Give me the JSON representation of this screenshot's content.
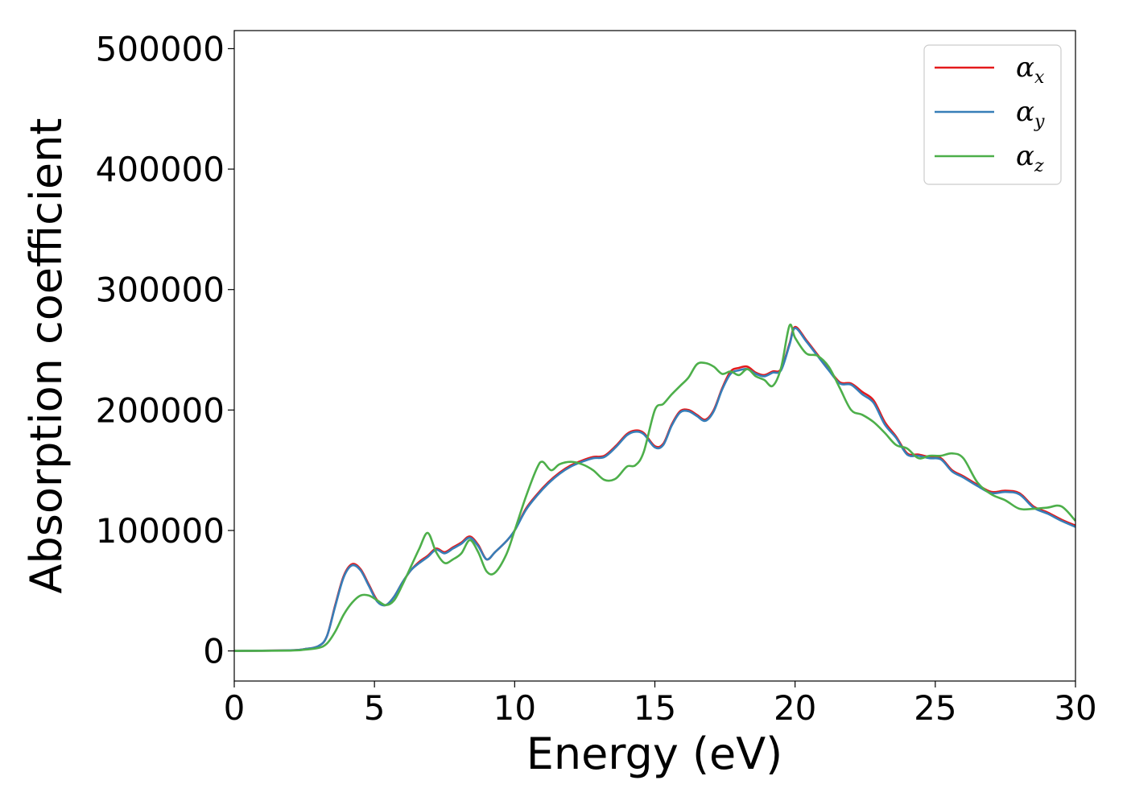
{
  "chart_data": {
    "type": "line",
    "xlabel": "Energy (eV)",
    "ylabel": "Absorption coefficient",
    "xlim": [
      0,
      30
    ],
    "ylim": [
      -25000,
      515000
    ],
    "xticks": [
      0,
      5,
      10,
      15,
      20,
      25,
      30
    ],
    "xtick_labels": [
      "0",
      "5",
      "10",
      "15",
      "20",
      "25",
      "30"
    ],
    "yticks": [
      0,
      100000,
      200000,
      300000,
      400000,
      500000
    ],
    "ytick_labels": [
      "0",
      "100000",
      "200000",
      "300000",
      "400000",
      "500000"
    ],
    "grid": false,
    "legend_position": "top-right",
    "series": [
      {
        "name": "α",
        "subscript": "x",
        "color": "#e41a1c",
        "x": [
          0,
          2,
          2.5,
          3,
          3.3,
          3.6,
          3.9,
          4.2,
          4.5,
          4.8,
          5.1,
          5.4,
          5.7,
          6.0,
          6.3,
          6.6,
          6.9,
          7.2,
          7.5,
          7.8,
          8.1,
          8.4,
          8.7,
          9.0,
          9.3,
          9.7,
          10.0,
          10.4,
          10.8,
          11.2,
          11.6,
          12.0,
          12.4,
          12.8,
          13.2,
          13.6,
          14.0,
          14.3,
          14.6,
          15.0,
          15.3,
          15.6,
          15.9,
          16.2,
          16.5,
          16.8,
          17.1,
          17.4,
          17.7,
          18.0,
          18.3,
          18.6,
          18.9,
          19.2,
          19.5,
          19.8,
          20.0,
          20.4,
          20.8,
          21.2,
          21.6,
          22.0,
          22.4,
          22.8,
          23.2,
          23.6,
          24.0,
          24.4,
          24.8,
          25.2,
          25.6,
          26.0,
          26.5,
          27.0,
          27.5,
          28.0,
          28.5,
          29.0,
          29.5,
          30.0
        ],
        "values": [
          0,
          500,
          1500,
          4000,
          12000,
          38000,
          62000,
          72000,
          68000,
          55000,
          42000,
          38000,
          45000,
          57000,
          67000,
          74000,
          79000,
          85000,
          82000,
          86000,
          90000,
          95000,
          88000,
          76000,
          82000,
          91000,
          100000,
          118000,
          130000,
          140000,
          148000,
          154000,
          158000,
          161000,
          162000,
          170000,
          180000,
          183000,
          181000,
          170000,
          172000,
          188000,
          199000,
          200000,
          196000,
          192000,
          200000,
          218000,
          232000,
          235000,
          236000,
          231000,
          229000,
          232000,
          234000,
          255000,
          269000,
          258000,
          246000,
          234000,
          223000,
          222000,
          215000,
          208000,
          190000,
          178000,
          164000,
          163000,
          161000,
          160000,
          150000,
          145000,
          138000,
          132000,
          133000,
          131000,
          120000,
          115000,
          109000,
          104000
        ]
      },
      {
        "name": "α",
        "subscript": "y",
        "color": "#377eb8",
        "x": [
          0,
          2,
          2.5,
          3,
          3.3,
          3.6,
          3.9,
          4.2,
          4.5,
          4.8,
          5.1,
          5.4,
          5.7,
          6.0,
          6.3,
          6.6,
          6.9,
          7.2,
          7.5,
          7.8,
          8.1,
          8.4,
          8.7,
          9.0,
          9.3,
          9.7,
          10.0,
          10.4,
          10.8,
          11.2,
          11.6,
          12.0,
          12.4,
          12.8,
          13.2,
          13.6,
          14.0,
          14.3,
          14.6,
          15.0,
          15.3,
          15.6,
          15.9,
          16.2,
          16.5,
          16.8,
          17.1,
          17.4,
          17.7,
          18.0,
          18.3,
          18.6,
          18.9,
          19.2,
          19.5,
          19.8,
          20.0,
          20.4,
          20.8,
          21.2,
          21.6,
          22.0,
          22.4,
          22.8,
          23.2,
          23.6,
          24.0,
          24.4,
          24.8,
          25.2,
          25.6,
          26.0,
          26.5,
          27.0,
          27.5,
          28.0,
          28.5,
          29.0,
          29.5,
          30.0
        ],
        "values": [
          0,
          500,
          1500,
          4000,
          12000,
          37000,
          61000,
          71000,
          67000,
          54000,
          41000,
          38000,
          45000,
          57000,
          67000,
          73000,
          78000,
          84000,
          81000,
          85000,
          89000,
          94000,
          87000,
          76000,
          82000,
          91000,
          100000,
          117000,
          129000,
          139000,
          147000,
          153000,
          157000,
          160000,
          161000,
          169000,
          179000,
          182000,
          180000,
          169000,
          171000,
          187000,
          198000,
          199000,
          195000,
          191000,
          199000,
          217000,
          230000,
          233000,
          234000,
          230000,
          228000,
          231000,
          233000,
          254000,
          268000,
          257000,
          245000,
          233000,
          222000,
          221000,
          213000,
          206000,
          188000,
          177000,
          163000,
          162000,
          160000,
          159000,
          149000,
          144000,
          137000,
          131000,
          132000,
          130000,
          119000,
          114000,
          108000,
          103000
        ]
      },
      {
        "name": "α",
        "subscript": "z",
        "color": "#4daf4a",
        "x": [
          0,
          2,
          2.5,
          3,
          3.3,
          3.6,
          3.9,
          4.2,
          4.5,
          4.8,
          5.1,
          5.4,
          5.7,
          6.0,
          6.3,
          6.6,
          6.9,
          7.2,
          7.5,
          7.8,
          8.1,
          8.4,
          8.7,
          9.0,
          9.3,
          9.7,
          10.0,
          10.4,
          10.8,
          11.0,
          11.3,
          11.6,
          12.0,
          12.4,
          12.8,
          13.2,
          13.6,
          14.0,
          14.3,
          14.6,
          15.0,
          15.3,
          15.6,
          15.9,
          16.2,
          16.5,
          16.8,
          17.1,
          17.4,
          17.7,
          18.0,
          18.3,
          18.6,
          18.9,
          19.2,
          19.5,
          19.8,
          20.0,
          20.4,
          20.8,
          21.2,
          21.6,
          22.0,
          22.4,
          22.8,
          23.2,
          23.6,
          24.0,
          24.4,
          24.8,
          25.2,
          25.6,
          26.0,
          26.5,
          27.0,
          27.5,
          28.0,
          28.5,
          29.0,
          29.5,
          30.0
        ],
        "values": [
          0,
          300,
          1000,
          2500,
          6000,
          16000,
          30000,
          40000,
          46000,
          46000,
          42000,
          38000,
          42000,
          55000,
          70000,
          85000,
          98000,
          82000,
          73000,
          76000,
          81000,
          92000,
          82000,
          66000,
          65000,
          80000,
          100000,
          128000,
          152000,
          157000,
          150000,
          155000,
          157000,
          155000,
          150000,
          142000,
          143000,
          153000,
          154000,
          165000,
          200000,
          205000,
          213000,
          220000,
          227000,
          238000,
          239000,
          236000,
          230000,
          232000,
          229000,
          234000,
          228000,
          225000,
          220000,
          235000,
          270000,
          260000,
          247000,
          245000,
          236000,
          218000,
          200000,
          196000,
          190000,
          181000,
          171000,
          168000,
          160000,
          162000,
          162000,
          164000,
          160000,
          140000,
          130000,
          125000,
          118000,
          118000,
          119000,
          120000,
          108000
        ]
      }
    ]
  }
}
